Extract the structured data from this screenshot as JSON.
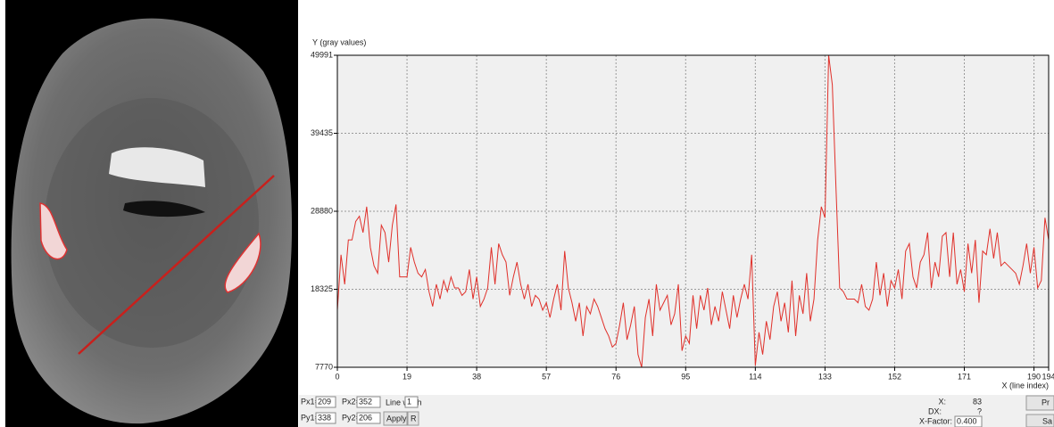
{
  "chart_data": {
    "type": "line",
    "y_label": "Y (gray values)",
    "x_label": "X (line index)",
    "x": [
      0,
      1,
      2,
      3,
      4,
      5,
      6,
      7,
      8,
      9,
      10,
      11,
      12,
      13,
      14,
      15,
      16,
      17,
      18,
      19,
      20,
      21,
      22,
      23,
      24,
      25,
      26,
      27,
      28,
      29,
      30,
      31,
      32,
      33,
      34,
      35,
      36,
      37,
      38,
      39,
      40,
      41,
      42,
      43,
      44,
      45,
      46,
      47,
      48,
      49,
      50,
      51,
      52,
      53,
      54,
      55,
      56,
      57,
      58,
      59,
      60,
      61,
      62,
      63,
      64,
      65,
      66,
      67,
      68,
      69,
      70,
      71,
      72,
      73,
      74,
      75,
      76,
      77,
      78,
      79,
      80,
      81,
      82,
      83,
      84,
      85,
      86,
      87,
      88,
      89,
      90,
      91,
      92,
      93,
      94,
      95,
      96,
      97,
      98,
      99,
      100,
      101,
      102,
      103,
      104,
      105,
      106,
      107,
      108,
      109,
      110,
      111,
      112,
      113,
      114,
      115,
      116,
      117,
      118,
      119,
      120,
      121,
      122,
      123,
      124,
      125,
      126,
      127,
      128,
      129,
      130,
      131,
      132,
      133,
      134,
      135,
      136,
      137,
      138,
      139,
      140,
      141,
      142,
      143,
      144,
      145,
      146,
      147,
      148,
      149,
      150,
      151,
      152,
      153,
      154,
      155,
      156,
      157,
      158,
      159,
      160,
      161,
      162,
      163,
      164,
      165,
      166,
      167,
      168,
      169,
      170,
      171,
      172,
      173,
      174,
      175,
      176,
      177,
      178,
      179,
      180,
      181,
      182,
      183,
      184,
      185,
      186,
      187,
      188,
      189,
      190,
      191,
      192,
      193,
      194
    ],
    "series": [
      {
        "color": "#e0302a",
        "values": [
          15500,
          23000,
          19000,
          25000,
          25000,
          27500,
          28200,
          26000,
          29500,
          24000,
          21500,
          20500,
          27000,
          26000,
          22000,
          27000,
          29800,
          20000,
          20000,
          20000,
          24000,
          22000,
          20500,
          20000,
          21000,
          18000,
          16000,
          19000,
          17000,
          19500,
          18000,
          20000,
          18500,
          18500,
          17500,
          18000,
          21000,
          17000,
          20000,
          16000,
          17000,
          18500,
          24000,
          19000,
          24500,
          23000,
          22000,
          17500,
          20000,
          22000,
          19000,
          17000,
          19000,
          16000,
          17500,
          17000,
          15500,
          16500,
          14500,
          17000,
          19000,
          15500,
          23500,
          18500,
          16500,
          14000,
          16500,
          12000,
          16000,
          15000,
          17000,
          16000,
          14500,
          13000,
          12000,
          10500,
          11000,
          13500,
          16500,
          11500,
          13500,
          16000,
          9500,
          7770,
          14500,
          17000,
          12000,
          19000,
          15500,
          16500,
          17500,
          13500,
          15000,
          19000,
          10000,
          12000,
          11000,
          17500,
          13000,
          17500,
          15500,
          18500,
          13500,
          16000,
          14000,
          18000,
          15500,
          13000,
          17500,
          14500,
          17000,
          19000,
          17000,
          23000,
          8000,
          12500,
          9500,
          14000,
          11500,
          16000,
          18000,
          14000,
          16500,
          12500,
          19500,
          12000,
          17500,
          15000,
          20500,
          14000,
          17000,
          25000,
          29500,
          28000,
          49991,
          46000,
          32000,
          18500,
          18000,
          17000,
          17000,
          17000,
          16500,
          19000,
          16000,
          15500,
          17000,
          22000,
          17500,
          20500,
          16000,
          19500,
          18500,
          21000,
          17000,
          23500,
          24500,
          20000,
          18500,
          22000,
          23000,
          26000,
          18500,
          22000,
          20000,
          25500,
          26000,
          20000,
          26000,
          19000,
          21000,
          18000,
          24500,
          20500,
          25000,
          16500,
          23500,
          23000,
          26500,
          22500,
          26000,
          21500,
          22000,
          21500,
          21000,
          20500,
          19000,
          21500,
          24500,
          20500,
          24000,
          18500,
          19500,
          28000,
          25000
        ]
      }
    ],
    "xlim": [
      0,
      194
    ],
    "xticks": [
      0,
      19,
      38,
      57,
      76,
      95,
      114,
      133,
      152,
      171,
      190,
      194
    ],
    "ylim": [
      7770,
      49991
    ],
    "yticks": [
      7770,
      18325,
      28880,
      39435,
      49991
    ],
    "grid": true
  },
  "controls": {
    "px1_label": "Px1=",
    "px1": "209",
    "px2_label": "Px2=",
    "px2": "352",
    "line_width_label": "Line width",
    "line_width": "1",
    "py1_label": "Py1=",
    "py1": "338",
    "py2_label": "Py2=",
    "py2": "206",
    "apply": "Apply",
    "r": "R",
    "x_label": "X:",
    "x_value": "83",
    "dx_label": "DX:",
    "dx_value": "?",
    "xfactor_label": "X-Factor:",
    "xfactor": "0.400",
    "pr": "Pr",
    "sa": "Sa"
  }
}
